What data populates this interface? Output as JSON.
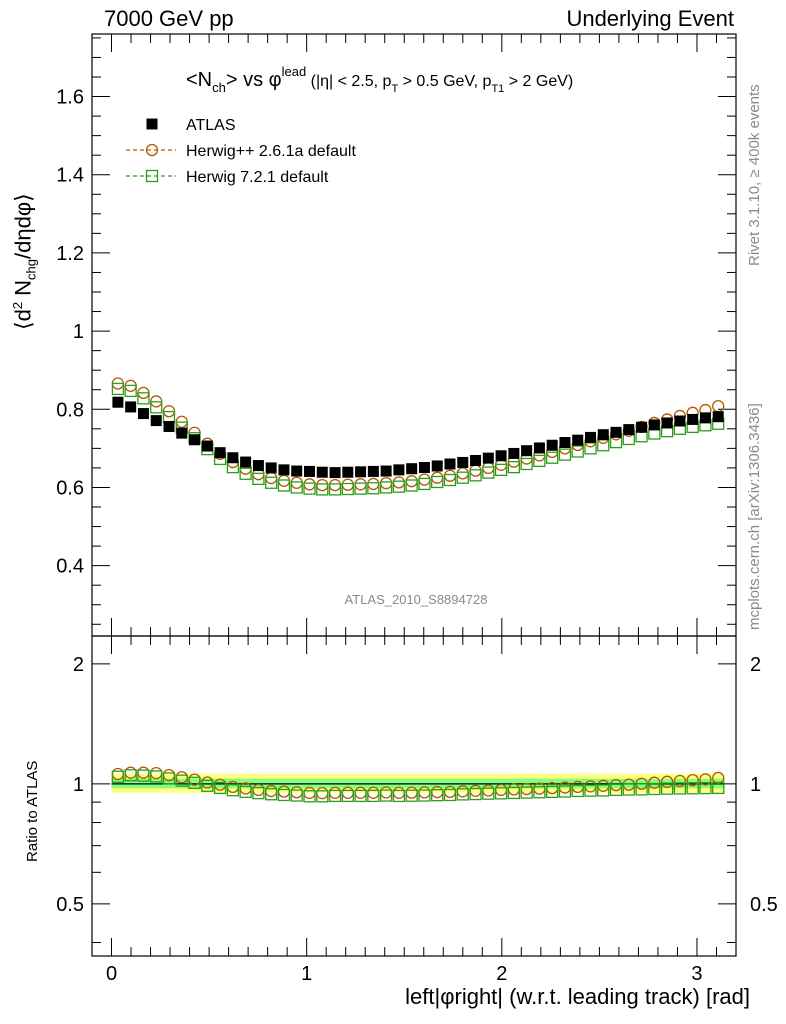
{
  "header": {
    "left": "7000 GeV pp",
    "right": "Underlying Event"
  },
  "side_notes": {
    "rivet": "Rivet 3.1.10, ≥ 400k events",
    "mcplots": "mcplots.cern.ch [arXiv:1306.3436]"
  },
  "axes": {
    "main_ylabel": "⟨d² N_chg/dηdφ⟩",
    "ratio_ylabel": "Ratio to ATLAS",
    "xlabel": "left|φright| (w.r.t. leading track) [rad]"
  },
  "plot_title": {
    "main": "<N_ch> vs φ^lead",
    "detail": "(|η| < 2.5, p_T > 0.5 GeV, p_T1 > 2 GeV)"
  },
  "analysis_label": "ATLAS_2010_S8894728",
  "colors": {
    "data": "#000000",
    "herwigpp": "#b05a00",
    "herwig7": "#2e9c1b",
    "band_outer": "#ffff80",
    "band_inner": "#80ff80",
    "annotation_gray": "#8a8a8a"
  },
  "chart_data": [
    {
      "type": "scatter",
      "panel": "main",
      "xlim": [
        -0.1,
        3.2
      ],
      "ylim": [
        0.22,
        1.76
      ],
      "yticks": [
        0.4,
        0.6,
        0.8,
        1,
        1.2,
        1.4,
        1.6
      ],
      "ytick_labels": [
        "0.4",
        "0.6",
        "0.8",
        "1",
        "1.2",
        "1.4",
        "1.6"
      ],
      "legend_position": "top-left",
      "x": [
        0.0327,
        0.0982,
        0.1636,
        0.2291,
        0.2945,
        0.36,
        0.4254,
        0.4909,
        0.5563,
        0.6218,
        0.6872,
        0.7527,
        0.8181,
        0.8836,
        0.949,
        1.0145,
        1.0799,
        1.1454,
        1.2108,
        1.2763,
        1.3417,
        1.4072,
        1.4726,
        1.5381,
        1.6035,
        1.669,
        1.7344,
        1.7999,
        1.8653,
        1.9308,
        1.9962,
        2.0617,
        2.1271,
        2.1926,
        2.258,
        2.3235,
        2.3889,
        2.4544,
        2.5198,
        2.5853,
        2.6507,
        2.7162,
        2.7816,
        2.8471,
        2.9125,
        2.978,
        3.0434,
        3.1089
      ],
      "series": [
        {
          "name": "ATLAS",
          "marker": "filled-square",
          "values": [
            0.818,
            0.806,
            0.789,
            0.771,
            0.756,
            0.739,
            0.722,
            0.706,
            0.689,
            0.676,
            0.665,
            0.656,
            0.65,
            0.645,
            0.642,
            0.641,
            0.639,
            0.638,
            0.639,
            0.64,
            0.641,
            0.642,
            0.645,
            0.648,
            0.651,
            0.655,
            0.66,
            0.664,
            0.669,
            0.675,
            0.681,
            0.687,
            0.694,
            0.701,
            0.708,
            0.715,
            0.721,
            0.728,
            0.735,
            0.741,
            0.748,
            0.754,
            0.76,
            0.765,
            0.77,
            0.774,
            0.778,
            0.781
          ]
        },
        {
          "name": "Herwig++ 2.6.1a default",
          "marker": "open-circle",
          "values": [
            0.866,
            0.86,
            0.842,
            0.82,
            0.795,
            0.768,
            0.74,
            0.712,
            0.686,
            0.665,
            0.648,
            0.634,
            0.624,
            0.617,
            0.612,
            0.608,
            0.606,
            0.606,
            0.607,
            0.608,
            0.609,
            0.611,
            0.613,
            0.616,
            0.62,
            0.625,
            0.63,
            0.636,
            0.643,
            0.65,
            0.658,
            0.666,
            0.674,
            0.682,
            0.691,
            0.7,
            0.709,
            0.718,
            0.727,
            0.736,
            0.745,
            0.755,
            0.765,
            0.774,
            0.783,
            0.791,
            0.798,
            0.808
          ]
        },
        {
          "name": "Herwig 7.2.1 default",
          "marker": "open-square",
          "values": [
            0.852,
            0.847,
            0.828,
            0.805,
            0.78,
            0.753,
            0.726,
            0.698,
            0.673,
            0.652,
            0.635,
            0.622,
            0.612,
            0.605,
            0.6,
            0.597,
            0.595,
            0.595,
            0.596,
            0.597,
            0.598,
            0.6,
            0.602,
            0.605,
            0.609,
            0.614,
            0.619,
            0.625,
            0.631,
            0.638,
            0.645,
            0.652,
            0.66,
            0.668,
            0.676,
            0.684,
            0.692,
            0.7,
            0.708,
            0.716,
            0.724,
            0.731,
            0.738,
            0.744,
            0.75,
            0.755,
            0.759,
            0.763
          ]
        }
      ]
    },
    {
      "type": "scatter",
      "panel": "ratio",
      "xlim": [
        -0.1,
        3.2
      ],
      "ylim": [
        0.37,
        2.35
      ],
      "log_y": true,
      "yticks": [
        0.5,
        1,
        2
      ],
      "ytick_labels": [
        "0.5",
        "1",
        "2"
      ],
      "xticks": [
        0,
        1,
        2,
        3
      ],
      "xtick_labels": [
        "0",
        "1",
        "2",
        "3"
      ],
      "reference_band": {
        "outer": [
          0.95,
          1.06
        ],
        "inner": [
          0.975,
          1.03
        ]
      },
      "series": [
        {
          "name": "Herwig++ 2.6.1a default",
          "marker": "open-circle",
          "values": [
            1.059,
            1.067,
            1.067,
            1.064,
            1.052,
            1.039,
            1.025,
            1.008,
            0.996,
            0.983,
            0.974,
            0.966,
            0.96,
            0.957,
            0.953,
            0.949,
            0.948,
            0.95,
            0.95,
            0.95,
            0.95,
            0.952,
            0.95,
            0.951,
            0.952,
            0.954,
            0.955,
            0.958,
            0.961,
            0.963,
            0.966,
            0.969,
            0.971,
            0.973,
            0.976,
            0.979,
            0.983,
            0.986,
            0.989,
            0.993,
            0.996,
            1.001,
            1.007,
            1.012,
            1.017,
            1.022,
            1.026,
            1.035
          ]
        },
        {
          "name": "Herwig 7.2.1 default",
          "marker": "open-square",
          "values": [
            1.042,
            1.051,
            1.049,
            1.044,
            1.032,
            1.019,
            1.006,
            0.989,
            0.977,
            0.964,
            0.955,
            0.948,
            0.942,
            0.938,
            0.935,
            0.931,
            0.931,
            0.933,
            0.933,
            0.933,
            0.933,
            0.935,
            0.933,
            0.934,
            0.935,
            0.937,
            0.938,
            0.941,
            0.943,
            0.945,
            0.947,
            0.949,
            0.951,
            0.953,
            0.955,
            0.957,
            0.96,
            0.962,
            0.963,
            0.966,
            0.968,
            0.969,
            0.971,
            0.973,
            0.974,
            0.975,
            0.976,
            0.977
          ]
        }
      ]
    }
  ]
}
